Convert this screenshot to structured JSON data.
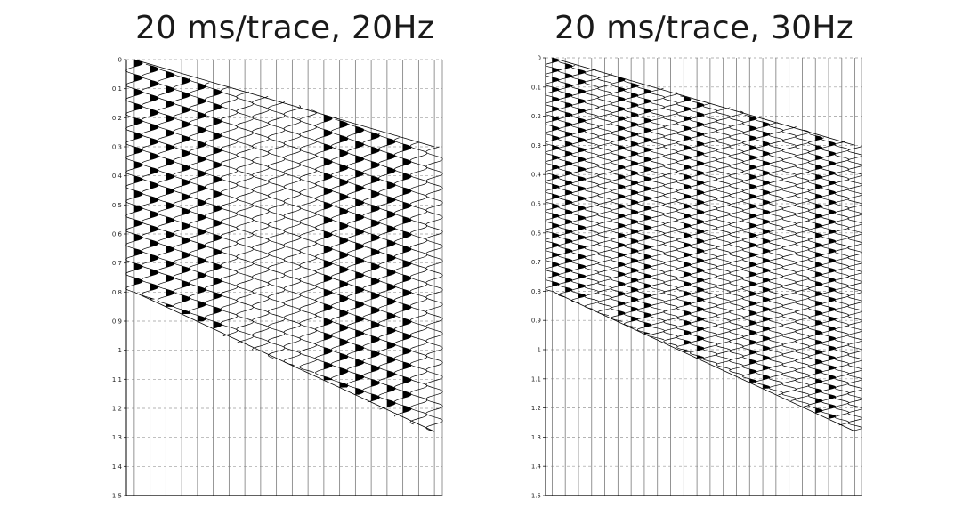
{
  "chart_data": [
    {
      "type": "seismic-wiggle",
      "title": "20 ms/trace, 20Hz",
      "ylabel": "",
      "xlabel": "",
      "ylim": [
        0,
        1.5
      ],
      "yticks": [
        "0",
        "0.1",
        "0.2",
        "0.3",
        "0.4",
        "0.5",
        "0.6",
        "0.7",
        "0.8",
        "0.9",
        "1",
        "1.1",
        "1.2",
        "1.3",
        "1.4",
        "1.5"
      ],
      "grid": true,
      "traces": 20,
      "dip_ms_per_trace": 20,
      "frequency_hz": 20,
      "event_top_start_s": 0.0,
      "event_bottom_start_s": 0.8,
      "event_top_end_s": 0.3,
      "event_bottom_end_s": 1.28,
      "fill": "positive-black"
    },
    {
      "type": "seismic-wiggle",
      "title": "20 ms/trace, 30Hz",
      "ylabel": "",
      "xlabel": "",
      "ylim": [
        0,
        1.5
      ],
      "yticks": [
        "0",
        "0.1",
        "0.2",
        "0.3",
        "0.4",
        "0.5",
        "0.6",
        "0.7",
        "0.8",
        "0.9",
        "1",
        "1.1",
        "1.2",
        "1.3",
        "1.4",
        "1.5"
      ],
      "grid": true,
      "traces": 24,
      "dip_ms_per_trace": 20,
      "frequency_hz": 30,
      "event_top_start_s": 0.0,
      "event_bottom_start_s": 0.8,
      "event_top_end_s": 0.3,
      "event_bottom_end_s": 1.28,
      "fill": "positive-black"
    }
  ],
  "colors": {
    "ink": "#000000",
    "grid": "#9a9a9a",
    "trace": "#7a7a7a"
  }
}
